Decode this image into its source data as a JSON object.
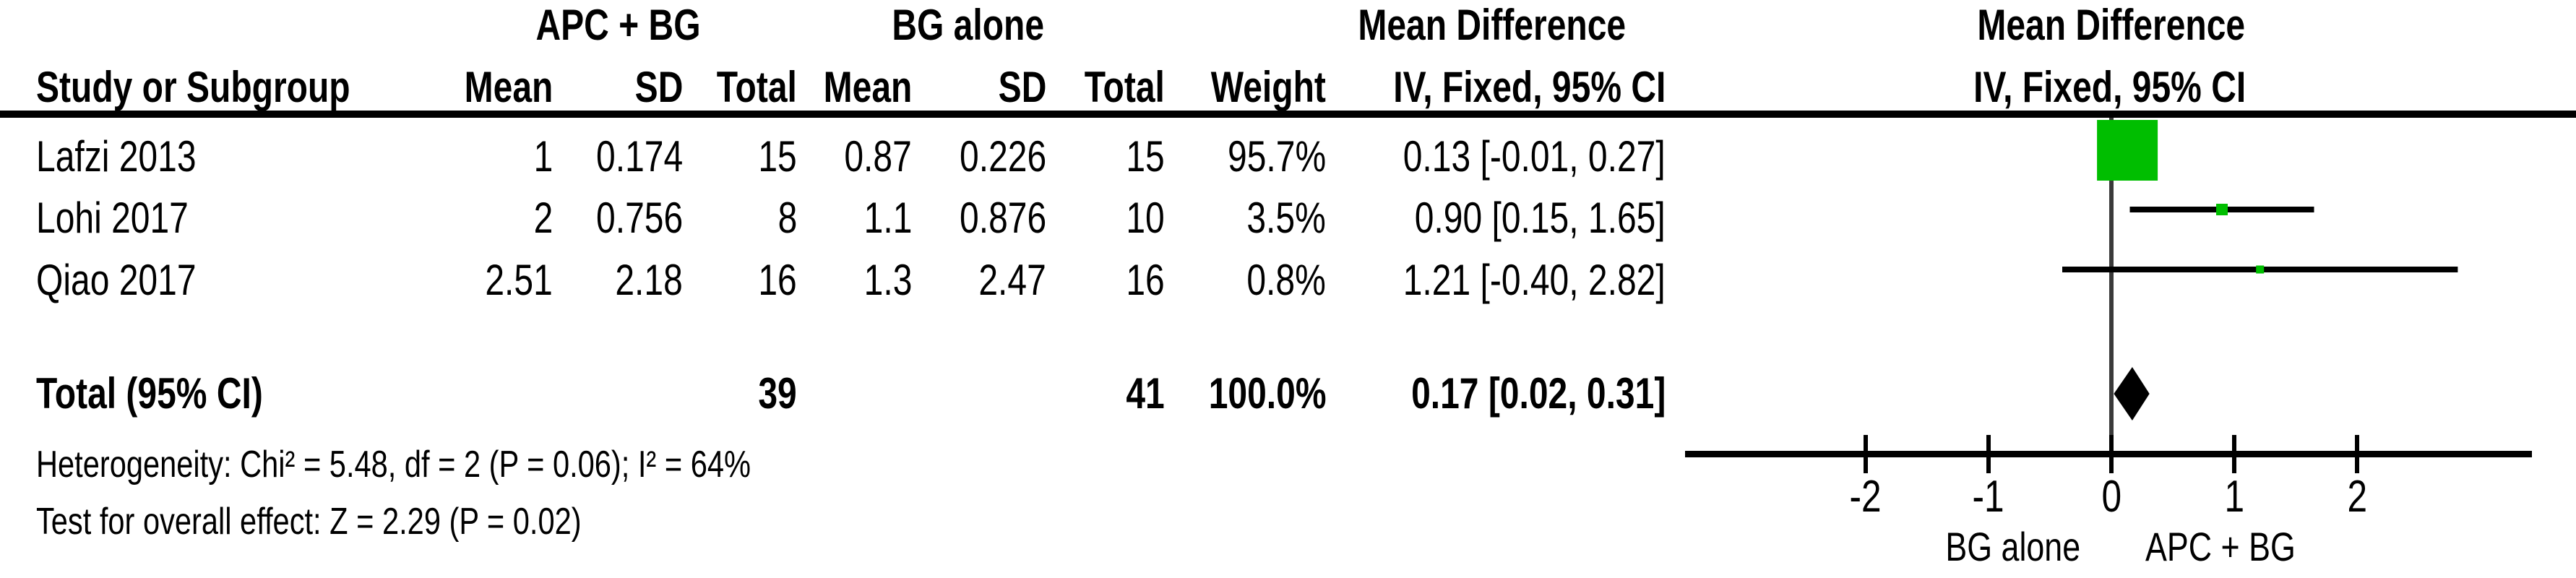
{
  "table": {
    "group_headers": {
      "experimental": "APC + BG",
      "control": "BG alone",
      "effect_col": "Mean Difference",
      "plot_col": "Mean Difference"
    },
    "col_headers": {
      "study": "Study or Subgroup",
      "mean1": "Mean",
      "sd1": "SD",
      "total1": "Total",
      "mean2": "Mean",
      "sd2": "SD",
      "total2": "Total",
      "weight": "Weight",
      "ci": "IV, Fixed, 95% CI",
      "ci_plot": "IV, Fixed, 95% CI"
    },
    "rows": [
      {
        "study": "Lafzi 2013",
        "mean1": "1",
        "sd1": "0.174",
        "total1": "15",
        "mean2": "0.87",
        "sd2": "0.226",
        "total2": "15",
        "weight": "95.7%",
        "ci": "0.13 [-0.01, 0.27]"
      },
      {
        "study": "Lohi 2017",
        "mean1": "2",
        "sd1": "0.756",
        "total1": "8",
        "mean2": "1.1",
        "sd2": "0.876",
        "total2": "10",
        "weight": "3.5%",
        "ci": "0.90 [0.15, 1.65]"
      },
      {
        "study": "Qiao 2017",
        "mean1": "2.51",
        "sd1": "2.18",
        "total1": "16",
        "mean2": "1.3",
        "sd2": "2.47",
        "total2": "16",
        "weight": "0.8%",
        "ci": "1.21 [-0.40, 2.82]"
      }
    ],
    "total_row": {
      "label": "Total (95% CI)",
      "total1": "39",
      "total2": "41",
      "weight": "100.0%",
      "ci": "0.17 [0.02, 0.31]"
    },
    "footnotes": {
      "heterogeneity": "Heterogeneity: Chi² = 5.48, df = 2 (P = 0.06); I² = 64%",
      "overall_effect": "Test for overall effect: Z = 2.29 (P = 0.02)"
    }
  },
  "chart_data": {
    "type": "scatter",
    "variant": "forest-plot",
    "effect_measure": "Mean Difference",
    "model": "IV, Fixed, 95% CI",
    "studies": [
      {
        "name": "Lafzi 2013",
        "md": 0.13,
        "ci_low": -0.01,
        "ci_high": 0.27,
        "weight_pct": 95.7
      },
      {
        "name": "Lohi 2017",
        "md": 0.9,
        "ci_low": 0.15,
        "ci_high": 1.65,
        "weight_pct": 3.5
      },
      {
        "name": "Qiao 2017",
        "md": 1.21,
        "ci_low": -0.4,
        "ci_high": 2.82,
        "weight_pct": 0.8
      }
    ],
    "pooled": {
      "md": 0.17,
      "ci_low": 0.02,
      "ci_high": 0.31,
      "weight_pct": 100.0
    },
    "axis": {
      "ticks": [
        -2,
        -1,
        0,
        1,
        2
      ],
      "tick_labels": [
        "-2",
        "-1",
        "0",
        "1",
        "2"
      ],
      "range": [
        -3.5,
        3.4
      ],
      "left_label": "BG alone",
      "right_label": "APC + BG",
      "grid": false
    },
    "colors": {
      "marker": "#00be00",
      "line": "#000000",
      "zero_line": "#3a3a3a",
      "diamond": "#000000"
    }
  }
}
